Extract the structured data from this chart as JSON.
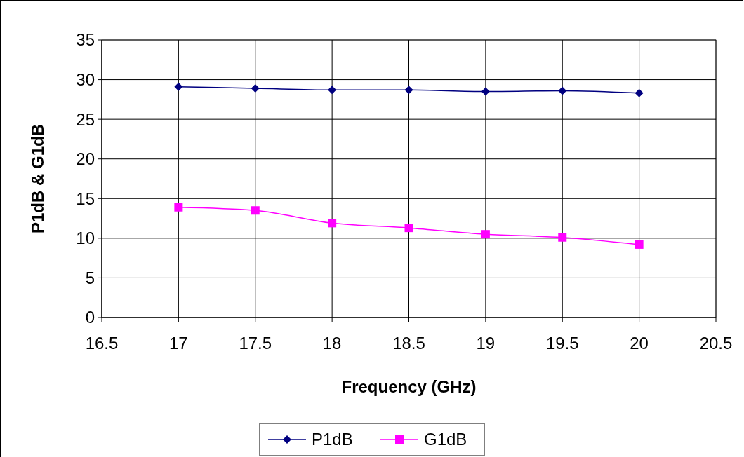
{
  "chart_data": {
    "type": "line",
    "xlabel": "Frequency (GHz)",
    "ylabel": "P1dB & G1dB",
    "x": [
      17,
      17.5,
      18,
      18.5,
      19,
      19.5,
      20
    ],
    "series": [
      {
        "name": "P1dB",
        "color": "#000080",
        "marker": "diamond",
        "values": [
          29.1,
          28.9,
          28.7,
          28.7,
          28.5,
          28.6,
          28.3
        ]
      },
      {
        "name": "G1dB",
        "color": "#ff00ff",
        "marker": "square",
        "values": [
          13.9,
          13.5,
          11.9,
          11.3,
          10.5,
          10.1,
          9.2
        ]
      }
    ],
    "xlim": [
      16.5,
      20.5
    ],
    "xticks": [
      16.5,
      17,
      17.5,
      18,
      18.5,
      19,
      19.5,
      20,
      20.5
    ],
    "ylim": [
      0,
      35
    ],
    "yticks": [
      0,
      5,
      10,
      15,
      20,
      25,
      30,
      35
    ],
    "grid": true,
    "legend": "bottom",
    "line_style": "solid"
  }
}
